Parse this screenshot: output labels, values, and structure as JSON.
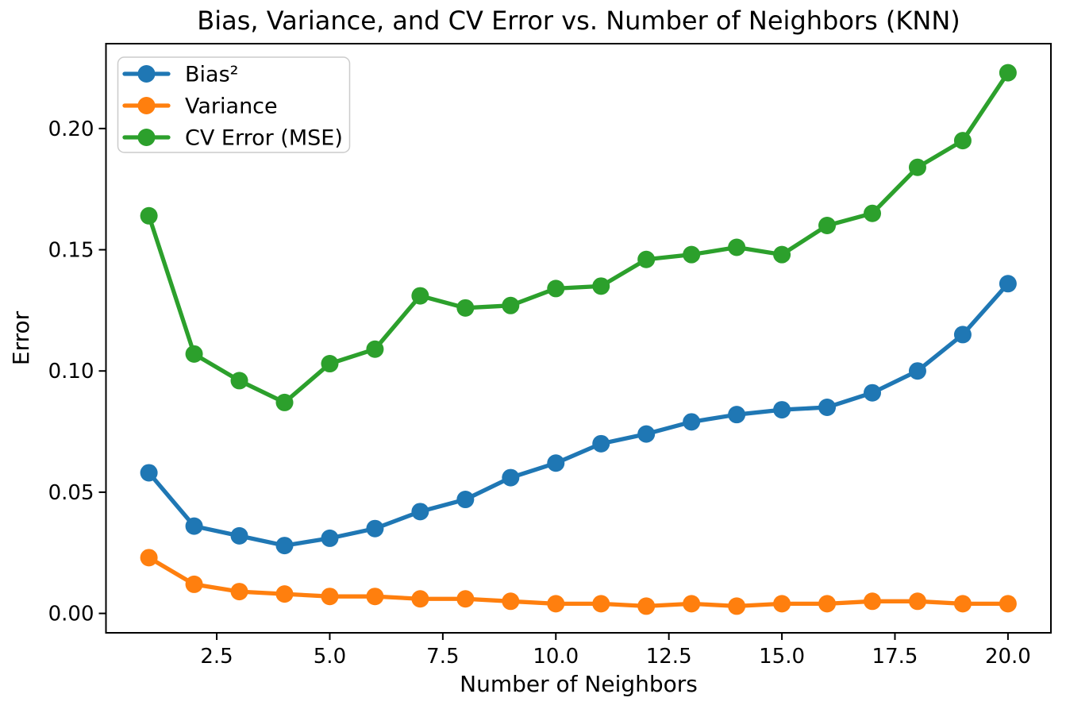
{
  "figure": {
    "title": "Bias, Variance, and CV Error vs. Number of Neighbors (KNN)",
    "xlabel": "Number of Neighbors",
    "ylabel": "Error"
  },
  "chart_data": {
    "type": "line",
    "title": "Bias, Variance, and CV Error vs. Number of Neighbors (KNN)",
    "xlabel": "Number of Neighbors",
    "ylabel": "Error",
    "grid": false,
    "legend_position": "upper left",
    "xlim": [
      0.05,
      20.95
    ],
    "ylim": [
      -0.008,
      0.235
    ],
    "xticks": {
      "values": [
        2.5,
        5,
        7.5,
        10,
        12.5,
        15,
        17.5,
        20
      ],
      "labels": [
        "2.5",
        "5.0",
        "7.5",
        "10.0",
        "12.5",
        "15.0",
        "17.5",
        "20.0"
      ]
    },
    "yticks": {
      "values": [
        0,
        0.05,
        0.1,
        0.15,
        0.2
      ],
      "labels": [
        "0.00",
        "0.05",
        "0.10",
        "0.15",
        "0.20"
      ]
    },
    "x": [
      1,
      2,
      3,
      4,
      5,
      6,
      7,
      8,
      9,
      10,
      11,
      12,
      13,
      14,
      15,
      16,
      17,
      18,
      19,
      20
    ],
    "series": [
      {
        "id": "bias-squared",
        "name": "Bias²",
        "color": "#1f77b4",
        "values": [
          0.058,
          0.036,
          0.032,
          0.028,
          0.031,
          0.035,
          0.042,
          0.047,
          0.056,
          0.062,
          0.07,
          0.074,
          0.079,
          0.082,
          0.084,
          0.085,
          0.091,
          0.1,
          0.115,
          0.136
        ]
      },
      {
        "id": "variance",
        "name": "Variance",
        "color": "#ff7f0e",
        "values": [
          0.023,
          0.012,
          0.009,
          0.008,
          0.007,
          0.007,
          0.006,
          0.006,
          0.005,
          0.004,
          0.004,
          0.003,
          0.004,
          0.003,
          0.004,
          0.004,
          0.005,
          0.005,
          0.004,
          0.004
        ]
      },
      {
        "id": "cv-error",
        "name": "CV Error (MSE)",
        "color": "#2ca02c",
        "values": [
          0.164,
          0.107,
          0.096,
          0.087,
          0.103,
          0.109,
          0.131,
          0.126,
          0.127,
          0.134,
          0.135,
          0.146,
          0.148,
          0.151,
          0.148,
          0.16,
          0.165,
          0.184,
          0.195,
          0.223
        ]
      }
    ]
  }
}
